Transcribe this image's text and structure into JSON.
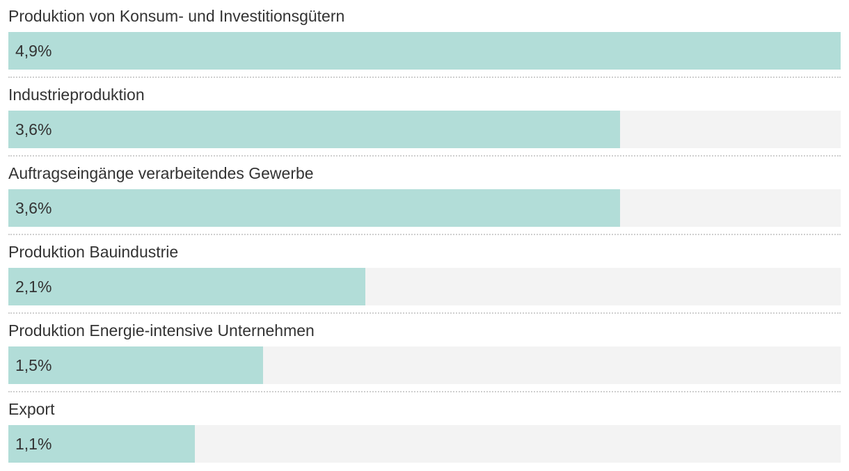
{
  "chart_data": {
    "type": "bar",
    "orientation": "horizontal",
    "categories": [
      "Produktion von Konsum- und Investitionsgütern",
      "Industrieproduktion",
      "Auftragseingänge verarbeitendes Gewerbe",
      "Produktion Bauindustrie",
      "Produktion Energie-intensive Unternehmen",
      "Export"
    ],
    "values": [
      4.9,
      3.6,
      3.6,
      2.1,
      1.5,
      1.1
    ],
    "value_labels": [
      "4,9%",
      "3,6%",
      "3,6%",
      "2,1%",
      "1,5%",
      "1,1%"
    ],
    "xlim": [
      0,
      4.9
    ],
    "colors": {
      "bar": "#b2ddd8",
      "track": "#f3f3f3"
    }
  }
}
